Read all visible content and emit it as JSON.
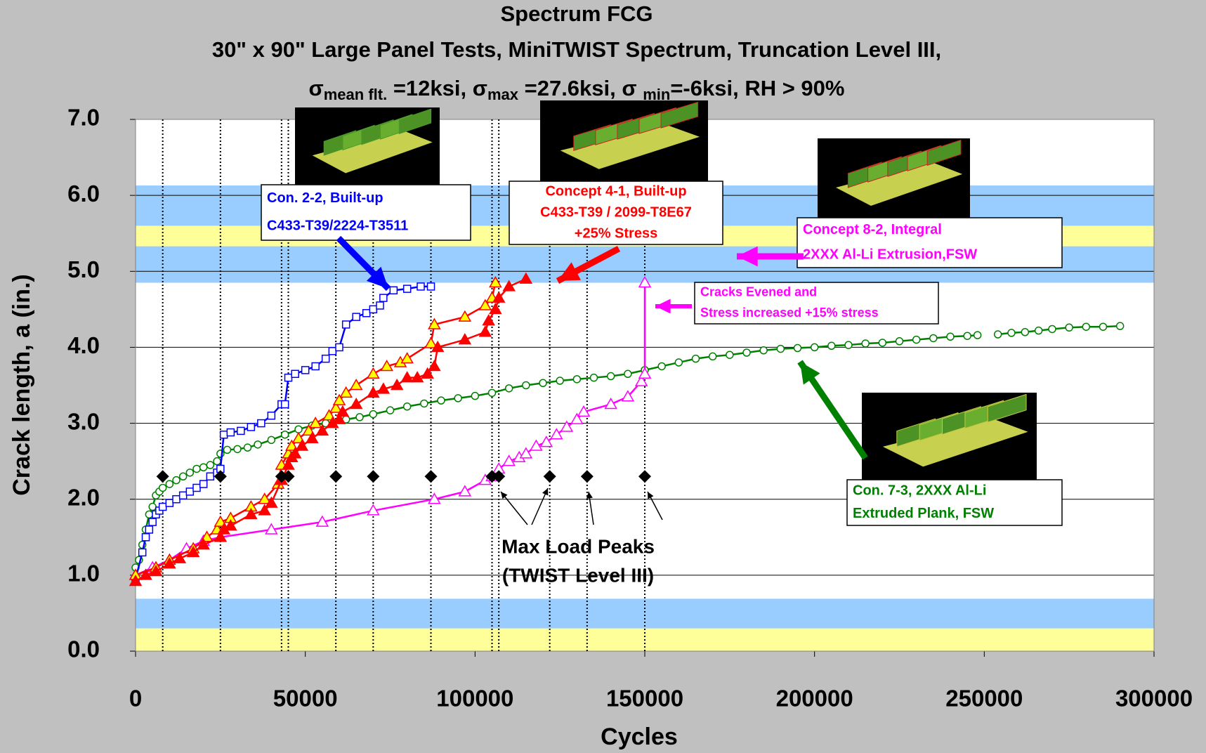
{
  "chart_data": {
    "type": "scatter",
    "title": "Spectrum FCG",
    "subtitle": "30\" x 90\" Large Panel Tests, MiniTWIST Spectrum, Truncation Level III,",
    "subtitle2": [
      {
        "text": "σ"
      },
      {
        "text": "mean flt.",
        "sub": true
      },
      {
        "text": " =12ksi,  σ"
      },
      {
        "text": "max",
        "sub": true
      },
      {
        "text": " =27.6ksi, σ "
      },
      {
        "text": "min",
        "sub": true
      },
      {
        "text": "=-6ksi, RH > 90%"
      }
    ],
    "x_label": "Cycles",
    "y_label": "Crack length, a (in.)",
    "xlim": [
      0,
      300000
    ],
    "ylim": [
      0,
      7
    ],
    "xticks": [
      0,
      50000,
      100000,
      150000,
      200000,
      250000,
      300000
    ],
    "yticks": [
      {
        "value": 0,
        "label": "0.0"
      },
      {
        "value": 1,
        "label": "1.0"
      },
      {
        "value": 2,
        "label": "2.0"
      },
      {
        "value": 3,
        "label": "3.0"
      },
      {
        "value": 4,
        "label": "4.0"
      },
      {
        "value": 5,
        "label": "5.0"
      },
      {
        "value": 6,
        "label": "6.0"
      },
      {
        "value": 7,
        "label": "7.0"
      }
    ],
    "grid": true,
    "bands": [
      {
        "y": [
          0,
          0.3
        ],
        "color": "#ffff99"
      },
      {
        "y": [
          0.3,
          0.69
        ],
        "color": "#99ccff"
      },
      {
        "y": [
          4.85,
          5.33
        ],
        "color": "#99ccff"
      },
      {
        "y": [
          5.33,
          5.6
        ],
        "color": "#ffff99"
      },
      {
        "y": [
          5.6,
          6.13
        ],
        "color": "#99ccff"
      }
    ],
    "series": [
      {
        "color": "#008000",
        "marker": "circle",
        "fill": "#ffffff",
        "x": [
          0,
          1000,
          2000,
          3000,
          4000,
          5000,
          6000,
          7000,
          8000,
          10000,
          12000,
          14000,
          16000,
          18000,
          20000,
          22000,
          24000,
          25000,
          27000,
          30000,
          33000,
          36000,
          40000,
          44000,
          48000,
          52000,
          56000,
          62000,
          66000,
          70000,
          75000,
          80000,
          85000,
          90000,
          95000,
          100000,
          105000,
          110000,
          115000,
          120000,
          125000,
          130000,
          135000,
          140000,
          145000,
          150000,
          155000,
          160000,
          165000,
          170000,
          175000,
          180000,
          185000,
          190000,
          195000,
          200000,
          205000,
          210000,
          215000,
          220000,
          225000,
          230000,
          235000,
          240000,
          245000,
          248000,
          251000,
          254000,
          258000,
          262000,
          266000,
          270000,
          275000,
          280000,
          285000,
          290000
        ],
        "values": [
          1.1,
          1.2,
          1.4,
          1.6,
          1.8,
          1.9,
          2.05,
          2.1,
          2.15,
          2.2,
          2.25,
          2.3,
          2.35,
          2.4,
          2.42,
          2.45,
          2.5,
          2.6,
          2.65,
          2.66,
          2.68,
          2.72,
          2.78,
          2.85,
          2.92,
          2.97,
          3.0,
          3.05,
          3.08,
          3.12,
          3.17,
          3.22,
          3.26,
          3.3,
          3.33,
          3.36,
          3.4,
          3.46,
          3.5,
          3.53,
          3.56,
          3.58,
          3.6,
          3.62,
          3.65,
          3.7,
          3.75,
          3.8,
          3.85,
          3.88,
          3.9,
          3.93,
          3.96,
          3.98,
          3.99,
          4.0,
          4.02,
          4.03,
          4.05,
          4.06,
          4.08,
          4.1,
          4.12,
          4.14,
          4.15,
          4.16,
          null,
          4.17,
          4.19,
          4.2,
          4.22,
          4.24,
          4.26,
          4.27,
          4.27,
          4.28
        ]
      },
      {
        "color": "#0000ff",
        "marker": "square",
        "fill": "#ffffff",
        "x": [
          0,
          2000,
          3000,
          4000,
          5000,
          6000,
          7000,
          8000,
          10000,
          12000,
          14000,
          16000,
          18000,
          20000,
          22000,
          24000,
          25000,
          26000,
          28000,
          31000,
          34000,
          37000,
          40000,
          43000,
          44000,
          45000,
          47000,
          50000,
          53000,
          56000,
          58000,
          60000,
          62000,
          65000,
          68000,
          70000,
          72000,
          73000,
          76000,
          80000,
          84000,
          87000
        ],
        "values": [
          0.95,
          1.3,
          1.5,
          1.6,
          1.7,
          1.8,
          1.85,
          1.9,
          1.95,
          2.0,
          2.05,
          2.1,
          2.15,
          2.2,
          2.3,
          2.35,
          2.4,
          2.85,
          2.88,
          2.9,
          2.95,
          3.0,
          3.1,
          3.25,
          3.25,
          3.6,
          3.65,
          3.7,
          3.75,
          3.85,
          3.95,
          4.0,
          4.3,
          4.4,
          4.45,
          4.5,
          4.55,
          4.65,
          4.75,
          4.77,
          4.8,
          4.8
        ]
      },
      {
        "color": "#ff00ff",
        "marker": "triangle",
        "fill": "#ffffff",
        "x": [
          0,
          5000,
          10000,
          15000,
          20000,
          25000,
          40000,
          55000,
          70000,
          88000,
          97000,
          103000,
          105000,
          107000,
          110000,
          113000,
          115000,
          118000,
          121000,
          124000,
          127000,
          130000,
          132000,
          140000,
          145000,
          149000,
          150000,
          150000
        ],
        "values": [
          1.0,
          1.1,
          1.2,
          1.35,
          1.45,
          1.5,
          1.6,
          1.7,
          1.85,
          2.0,
          2.1,
          2.25,
          2.3,
          2.4,
          2.5,
          2.55,
          2.6,
          2.7,
          2.75,
          2.85,
          2.95,
          3.05,
          3.15,
          3.25,
          3.35,
          3.55,
          3.65,
          4.85
        ]
      },
      {
        "color": "#ff0000",
        "marker": "triangle",
        "fill": "#ffff00",
        "x": [
          0,
          6000,
          10000,
          17000,
          21000,
          24000,
          25000,
          28000,
          34000,
          38000,
          42000,
          43000,
          45000,
          46000,
          48000,
          51000,
          53000,
          57000,
          59000,
          60000,
          62000,
          65000,
          70000,
          74000,
          78000,
          80000,
          87000,
          88000,
          97000,
          103000,
          105000,
          106000
        ],
        "values": [
          1.0,
          1.1,
          1.2,
          1.35,
          1.5,
          1.6,
          1.7,
          1.75,
          1.9,
          2.0,
          2.2,
          2.45,
          2.6,
          2.7,
          2.8,
          2.9,
          3.0,
          3.1,
          3.2,
          3.3,
          3.4,
          3.5,
          3.65,
          3.75,
          3.8,
          3.85,
          4.05,
          4.3,
          4.4,
          4.55,
          4.65,
          4.85
        ]
      },
      {
        "color": "#ff0000",
        "marker": "triangle",
        "fill": "#ff0000",
        "x": [
          0,
          3000,
          6000,
          10000,
          13000,
          17000,
          20000,
          25000,
          26000,
          28000,
          34000,
          38000,
          40000,
          43000,
          45000,
          46000,
          47000,
          49000,
          52000,
          55000,
          58000,
          60000,
          61000,
          65000,
          70000,
          73000,
          77000,
          80000,
          83000,
          86000,
          88000,
          89000,
          97000,
          103000,
          104000,
          106000,
          107000,
          110000,
          115000
        ],
        "values": [
          0.92,
          1.0,
          1.05,
          1.15,
          1.22,
          1.3,
          1.4,
          1.5,
          1.6,
          1.65,
          1.8,
          1.85,
          1.95,
          2.25,
          2.45,
          2.55,
          2.6,
          2.7,
          2.8,
          2.9,
          3.0,
          3.05,
          3.15,
          3.25,
          3.4,
          3.45,
          3.5,
          3.6,
          3.6,
          3.65,
          3.75,
          4.0,
          4.1,
          4.2,
          4.35,
          4.5,
          4.65,
          4.8,
          4.9
        ]
      }
    ],
    "peaks": {
      "x": [
        8000,
        25000,
        43000,
        45000,
        59000,
        70000,
        87000,
        105000,
        107000,
        122000,
        133000,
        150000
      ],
      "values": [
        2.3,
        2.3,
        2.3,
        2.3,
        2.3,
        2.3,
        2.3,
        2.3,
        2.3,
        2.3,
        2.3,
        2.3
      ],
      "color": "#000000"
    },
    "annotations": [
      {
        "lines": [
          "Con. 2-2, Built-up",
          "C433-T39/2224-T3511"
        ],
        "color": "#0000ff"
      },
      {
        "lines": [
          "Concept 4-1, Built-up",
          "C433-T39 / 2099-T8E67",
          "+25% Stress"
        ],
        "color": "#ff0000"
      },
      {
        "lines": [
          "Concept 8-2, Integral",
          "2XXX Al-Li Extrusion,FSW"
        ],
        "color": "#ff00ff"
      },
      {
        "lines": [
          "Cracks Evened and",
          "Stress increased +15% stress"
        ],
        "color": "#ff00ff"
      },
      {
        "lines": [
          "Con. 7-3, 2XXX Al-Li",
          "Extruded Plank, FSW"
        ],
        "color": "#008000"
      },
      {
        "lines": [
          "Max Load Peaks",
          "(TWIST Level III)"
        ],
        "color": "#000000"
      }
    ]
  }
}
